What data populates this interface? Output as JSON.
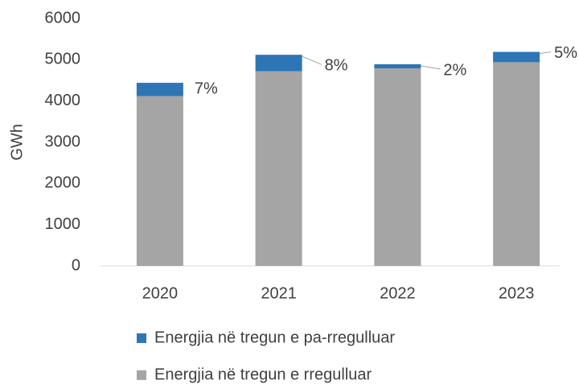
{
  "chart_data": {
    "type": "stacked_bar",
    "y_label": "GWh",
    "categories": [
      "2020",
      "2021",
      "2022",
      "2023"
    ],
    "series": [
      {
        "name": "Energjia në tregun e rregulluar",
        "color": "#a5a5a5",
        "values": [
          4120,
          4720,
          4790,
          4940
        ]
      },
      {
        "name": "Energjia në tregun e pa-rregulluar",
        "color": "#2e75b6",
        "values": [
          320,
          400,
          100,
          250
        ]
      }
    ],
    "annotations": [
      "7%",
      "8%",
      "2%",
      "5%"
    ],
    "ylim": [
      0,
      6000
    ],
    "yticks": [
      0,
      1000,
      2000,
      3000,
      4000,
      5000,
      6000
    ]
  }
}
